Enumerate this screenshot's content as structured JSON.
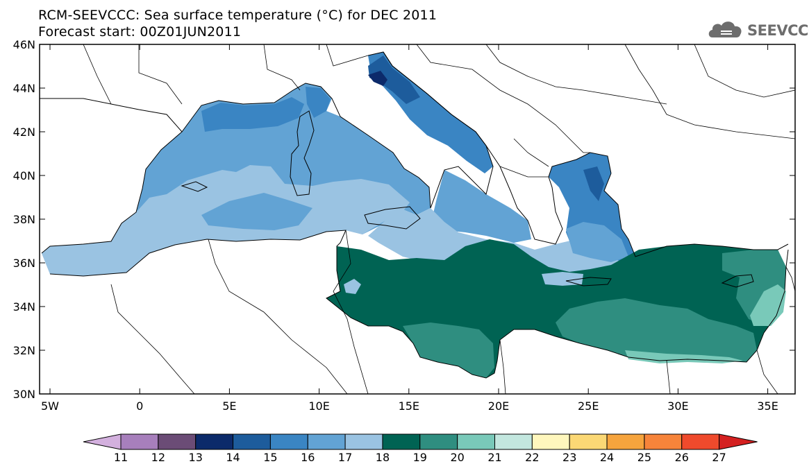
{
  "header": {
    "title_line1": "RCM-SEEVCCC: Sea surface temperature (°C) for DEC 2011",
    "title_line2": "Forecast start: 00Z01JUN2011",
    "logo_text": "SEEVCCC",
    "logo_icon": "cloud-icon"
  },
  "map": {
    "lat_labels": [
      "46N",
      "44N",
      "42N",
      "40N",
      "38N",
      "36N",
      "34N",
      "32N",
      "30N"
    ],
    "lon_labels": [
      "5W",
      "0",
      "5E",
      "10E",
      "15E",
      "20E",
      "25E",
      "30E",
      "35E"
    ]
  },
  "colorbar": {
    "labels": [
      "11",
      "12",
      "13",
      "14",
      "15",
      "16",
      "17",
      "18",
      "19",
      "20",
      "21",
      "22",
      "23",
      "24",
      "25",
      "26",
      "27"
    ],
    "colors": [
      "#d3b0de",
      "#a77fbc",
      "#6b4c76",
      "#0c2a6a",
      "#1d5c9c",
      "#3a85c3",
      "#62a3d4",
      "#9ac3e2",
      "#006353",
      "#2f8e80",
      "#79c9b9",
      "#c3e7df",
      "#fff7bd",
      "#fbd875",
      "#f6a43d",
      "#f7843a",
      "#ef4a2c",
      "#d42020"
    ]
  },
  "colors": {
    "sst_15": "#1d5c9c",
    "sst_16": "#3a85c3",
    "sst_17": "#62a3d4",
    "sst_18": "#9ac3e2",
    "sst_19": "#006353",
    "sst_20": "#2f8e80",
    "sst_21": "#79c9b9"
  }
}
